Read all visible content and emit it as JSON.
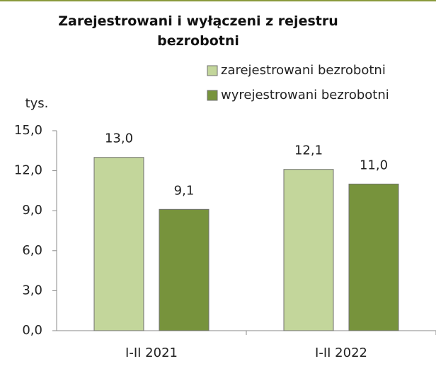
{
  "chart_data": {
    "type": "bar",
    "title": "Zarejestrowani i wyłączeni z rejestru bezrobotni",
    "ylabel": "tys.",
    "categories": [
      "I-II 2021",
      "I-II 2022"
    ],
    "series": [
      {
        "name": "zarejestrowani bezrobotni",
        "color": "#c3d69b",
        "values": [
          13.0,
          12.1
        ],
        "value_labels": [
          "13,0",
          "12,1"
        ]
      },
      {
        "name": "wyrejestrowani bezrobotni",
        "color": "#77933c",
        "values": [
          9.1,
          11.0
        ],
        "value_labels": [
          "9,1",
          "11,0"
        ]
      }
    ],
    "ylim": [
      0,
      15
    ],
    "yticks": [
      {
        "value": 0,
        "label": "0,0"
      },
      {
        "value": 3,
        "label": "3,0"
      },
      {
        "value": 6,
        "label": "6,0"
      },
      {
        "value": 9,
        "label": "9,0"
      },
      {
        "value": 12,
        "label": "12,0"
      },
      {
        "value": 15,
        "label": "15,0"
      }
    ],
    "grid": false,
    "legend": "top-right"
  }
}
